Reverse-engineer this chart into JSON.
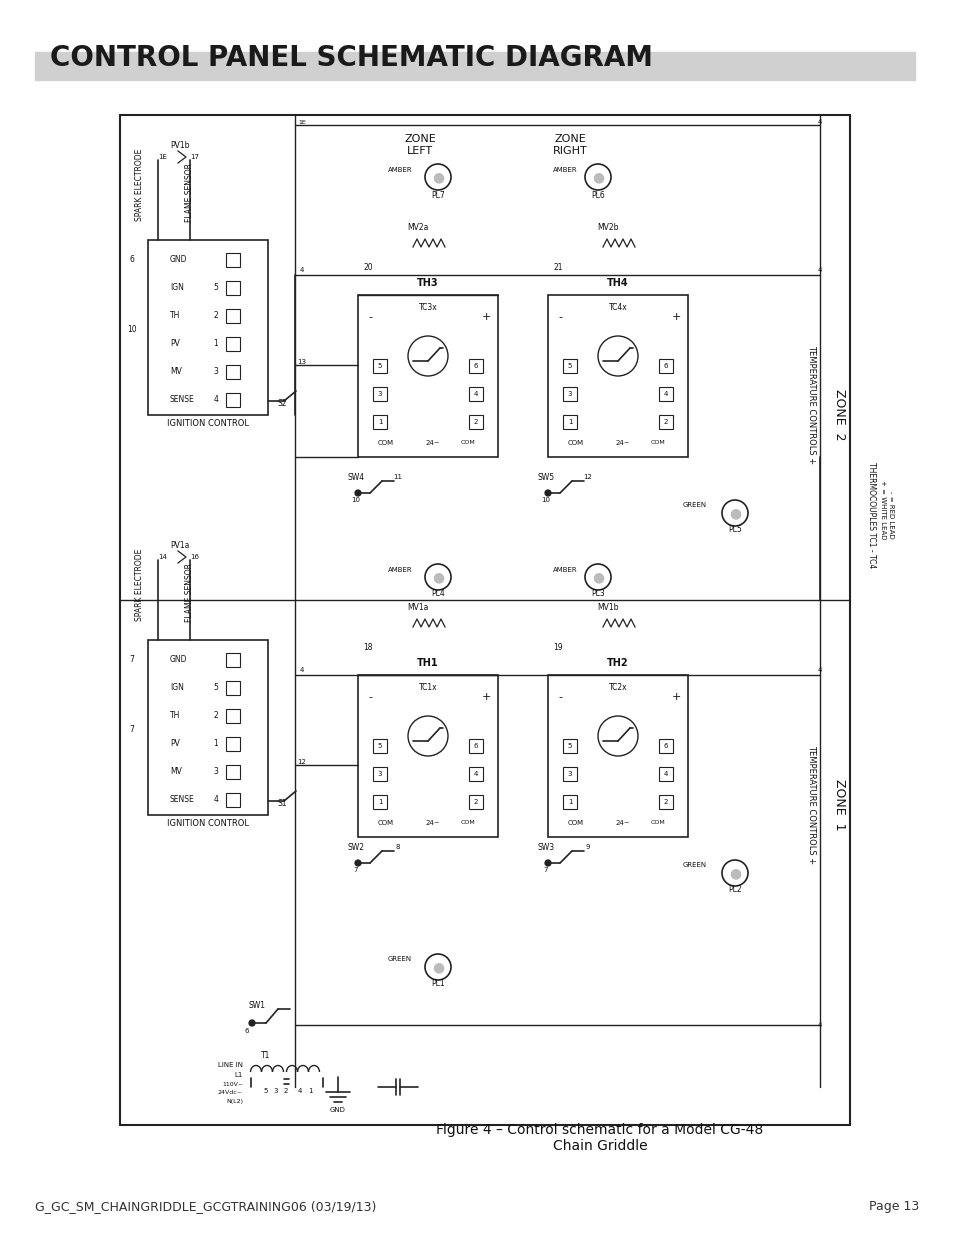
{
  "title": "CONTROL PANEL SCHEMATIC DIAGRAM",
  "title_fontsize": 20,
  "title_fontweight": "bold",
  "footer_left": "G_GC_SM_CHAINGRIDDLE_GCGTRAINING06 (03/19/13)",
  "footer_right": "Page 13",
  "footer_fontsize": 9,
  "caption": "Figure 4 – Control schematic for a Model CG-48\nChain Griddle",
  "bg_color": "#ffffff"
}
